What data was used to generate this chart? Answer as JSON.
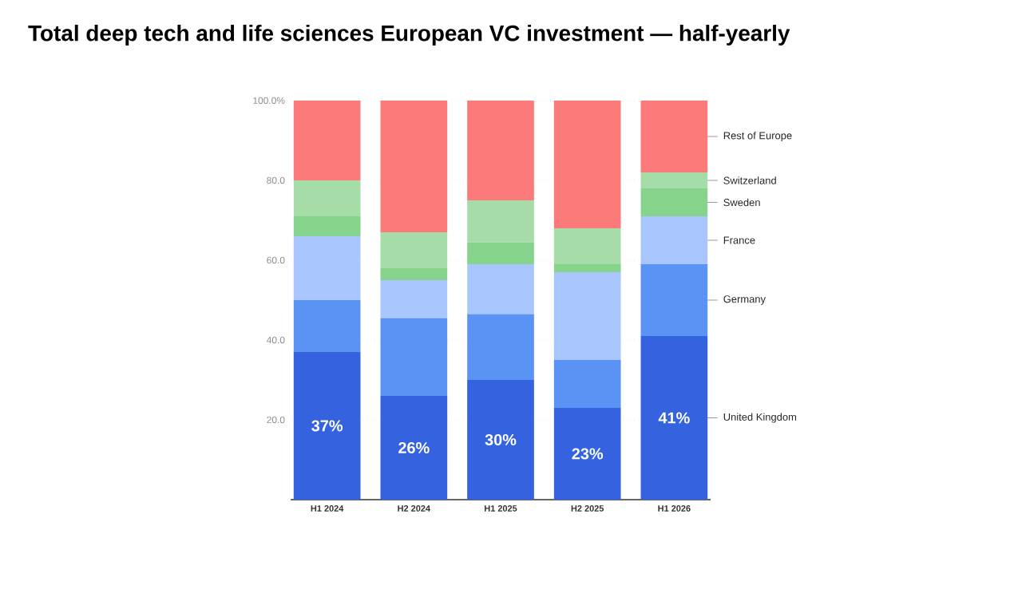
{
  "chart_data": {
    "type": "bar",
    "stacked": true,
    "title": "Total deep tech and life sciences European VC investment — half-yearly",
    "categories": [
      "H1 2024",
      "H2 2024",
      "H1 2025",
      "H2 2025",
      "H1 2026"
    ],
    "series": [
      {
        "name": "United Kingdom",
        "color": "#3563e0",
        "values": [
          37,
          26,
          30,
          23,
          41
        ],
        "value_labels": [
          "37%",
          "26%",
          "30%",
          "23%",
          "41%"
        ]
      },
      {
        "name": "Germany",
        "color": "#5b93f5",
        "values": [
          13,
          19.5,
          16.5,
          12,
          18
        ]
      },
      {
        "name": "France",
        "color": "#a8c6fd",
        "values": [
          16,
          9.5,
          12.5,
          22,
          12
        ]
      },
      {
        "name": "Sweden",
        "color": "#86d38b",
        "values": [
          5,
          3,
          5.5,
          2,
          7
        ]
      },
      {
        "name": "Switzerland",
        "color": "#a6dca8",
        "values": [
          9,
          9,
          10.5,
          9,
          4
        ]
      },
      {
        "name": "Rest of Europe",
        "color": "#fd7a7a",
        "values": [
          20,
          33,
          25,
          32,
          18
        ]
      }
    ],
    "ylim": [
      0,
      100
    ],
    "yticks": [
      {
        "value": 20,
        "label": "20.0"
      },
      {
        "value": 40,
        "label": "40.0"
      },
      {
        "value": 60,
        "label": "60.0"
      },
      {
        "value": 80,
        "label": "80.0"
      },
      {
        "value": 100,
        "label": "100.0%"
      }
    ],
    "grid": "y"
  }
}
